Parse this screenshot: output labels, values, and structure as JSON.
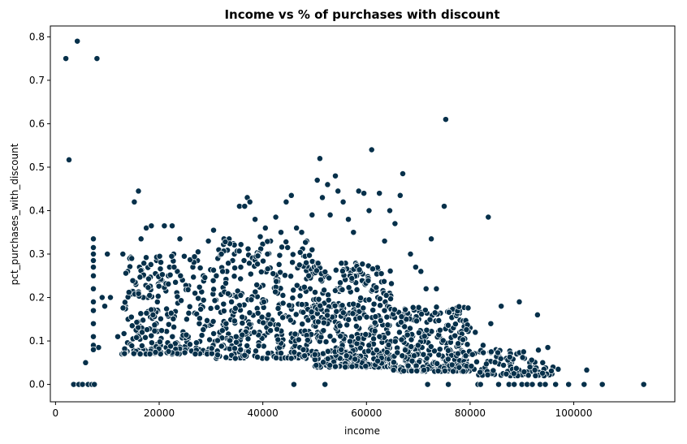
{
  "chart_data": {
    "type": "scatter",
    "title": "Income vs % of purchases with discount",
    "xlabel": "income",
    "ylabel": "pct_purchases_with_discount",
    "xlim": [
      -1000,
      119500
    ],
    "ylim": [
      -0.04,
      0.825
    ],
    "xticks": [
      0,
      20000,
      40000,
      60000,
      80000,
      100000
    ],
    "xtick_labels": [
      "0",
      "20000",
      "40000",
      "60000",
      "80000",
      "100000"
    ],
    "yticks": [
      0.0,
      0.1,
      0.2,
      0.3,
      0.4,
      0.5,
      0.6,
      0.7,
      0.8
    ],
    "ytick_labels": [
      "0.0",
      "0.1",
      "0.2",
      "0.3",
      "0.4",
      "0.5",
      "0.6",
      "0.7",
      "0.8"
    ],
    "grid": false,
    "legend": "none",
    "marker_color": "#06304a",
    "marker_edge_color": "#ffffff",
    "points": [
      [
        2000,
        0.75
      ],
      [
        4200,
        0.79
      ],
      [
        8000,
        0.75
      ],
      [
        2600,
        0.517
      ],
      [
        3500,
        0.0
      ],
      [
        4500,
        0.0
      ],
      [
        5200,
        0.0
      ],
      [
        6300,
        0.0
      ],
      [
        7000,
        0.0
      ],
      [
        7500,
        0.0
      ],
      [
        5800,
        0.05
      ],
      [
        8300,
        0.085
      ],
      [
        9000,
        0.2
      ],
      [
        10000,
        0.3
      ],
      [
        10600,
        0.2
      ],
      [
        9500,
        0.18
      ],
      [
        7300,
        0.335
      ],
      [
        7300,
        0.315
      ],
      [
        7300,
        0.3
      ],
      [
        7300,
        0.285
      ],
      [
        7300,
        0.27
      ],
      [
        7300,
        0.25
      ],
      [
        7300,
        0.22
      ],
      [
        7300,
        0.19
      ],
      [
        7300,
        0.17
      ],
      [
        7300,
        0.14
      ],
      [
        7300,
        0.11
      ],
      [
        7300,
        0.09
      ],
      [
        7300,
        0.08
      ],
      [
        13000,
        0.3
      ],
      [
        14500,
        0.29
      ],
      [
        15200,
        0.42
      ],
      [
        16000,
        0.445
      ],
      [
        16500,
        0.335
      ],
      [
        17500,
        0.36
      ],
      [
        18500,
        0.365
      ],
      [
        19500,
        0.285
      ],
      [
        21000,
        0.365
      ],
      [
        22500,
        0.365
      ],
      [
        24000,
        0.335
      ],
      [
        12000,
        0.11
      ],
      [
        12800,
        0.07
      ],
      [
        13500,
        0.18
      ],
      [
        14000,
        0.15
      ],
      [
        14800,
        0.215
      ],
      [
        15500,
        0.23
      ],
      [
        16200,
        0.27
      ],
      [
        17000,
        0.25
      ],
      [
        17800,
        0.2
      ],
      [
        18300,
        0.155
      ],
      [
        19000,
        0.13
      ],
      [
        19800,
        0.17
      ],
      [
        20500,
        0.24
      ],
      [
        21300,
        0.215
      ],
      [
        22000,
        0.27
      ],
      [
        22800,
        0.3
      ],
      [
        23500,
        0.26
      ],
      [
        24500,
        0.24
      ],
      [
        25500,
        0.22
      ],
      [
        26500,
        0.27
      ],
      [
        27500,
        0.305
      ],
      [
        28500,
        0.25
      ],
      [
        29500,
        0.33
      ],
      [
        30500,
        0.355
      ],
      [
        31500,
        0.31
      ],
      [
        32500,
        0.335
      ],
      [
        33500,
        0.335
      ],
      [
        34500,
        0.3
      ],
      [
        35500,
        0.41
      ],
      [
        36500,
        0.41
      ],
      [
        37000,
        0.43
      ],
      [
        37500,
        0.42
      ],
      [
        38500,
        0.38
      ],
      [
        39500,
        0.34
      ],
      [
        40500,
        0.36
      ],
      [
        41500,
        0.33
      ],
      [
        42500,
        0.385
      ],
      [
        43500,
        0.35
      ],
      [
        44500,
        0.42
      ],
      [
        45500,
        0.435
      ],
      [
        46500,
        0.36
      ],
      [
        47500,
        0.35
      ],
      [
        48500,
        0.33
      ],
      [
        49500,
        0.39
      ],
      [
        50500,
        0.47
      ],
      [
        51000,
        0.52
      ],
      [
        51500,
        0.43
      ],
      [
        52500,
        0.46
      ],
      [
        53000,
        0.39
      ],
      [
        54000,
        0.48
      ],
      [
        54500,
        0.445
      ],
      [
        55500,
        0.42
      ],
      [
        56500,
        0.38
      ],
      [
        57500,
        0.35
      ],
      [
        58500,
        0.445
      ],
      [
        59500,
        0.44
      ],
      [
        60500,
        0.4
      ],
      [
        61000,
        0.54
      ],
      [
        62500,
        0.44
      ],
      [
        63500,
        0.33
      ],
      [
        64500,
        0.4
      ],
      [
        65500,
        0.37
      ],
      [
        66500,
        0.435
      ],
      [
        67000,
        0.485
      ],
      [
        68500,
        0.3
      ],
      [
        69500,
        0.27
      ],
      [
        70500,
        0.26
      ],
      [
        71500,
        0.22
      ],
      [
        72500,
        0.335
      ],
      [
        73500,
        0.22
      ],
      [
        75000,
        0.41
      ],
      [
        75300,
        0.61
      ],
      [
        76000,
        0.17
      ],
      [
        77000,
        0.16
      ],
      [
        78000,
        0.12
      ],
      [
        79000,
        0.14
      ],
      [
        80000,
        0.13
      ],
      [
        81000,
        0.12
      ],
      [
        82500,
        0.09
      ],
      [
        83500,
        0.385
      ],
      [
        84000,
        0.14
      ],
      [
        85000,
        0.08
      ],
      [
        86000,
        0.18
      ],
      [
        87000,
        0.06
      ],
      [
        88000,
        0.05
      ],
      [
        89000,
        0.07
      ],
      [
        89500,
        0.19
      ],
      [
        90500,
        0.06
      ],
      [
        91500,
        0.05
      ],
      [
        92500,
        0.04
      ],
      [
        93000,
        0.16
      ],
      [
        94000,
        0.05
      ],
      [
        95000,
        0.085
      ],
      [
        96000,
        0.04
      ],
      [
        97000,
        0.035
      ],
      [
        71800,
        0.0
      ],
      [
        75800,
        0.0
      ],
      [
        81500,
        0.0
      ],
      [
        82000,
        0.0
      ],
      [
        85500,
        0.0
      ],
      [
        87500,
        0.0
      ],
      [
        88500,
        0.0
      ],
      [
        90000,
        0.0
      ],
      [
        91000,
        0.0
      ],
      [
        92000,
        0.0
      ],
      [
        93500,
        0.0
      ],
      [
        94500,
        0.0
      ],
      [
        96500,
        0.0
      ],
      [
        99000,
        0.0
      ],
      [
        102000,
        0.0
      ],
      [
        102500,
        0.033
      ],
      [
        105500,
        0.0
      ],
      [
        113500,
        0.0
      ],
      [
        46000,
        0.0
      ],
      [
        52000,
        0.0
      ]
    ],
    "dense_regions": [
      {
        "x_range": [
          13000,
          30000
        ],
        "y_range": [
          0.07,
          0.3
        ],
        "count": 240
      },
      {
        "x_range": [
          30000,
          50000
        ],
        "y_range": [
          0.06,
          0.33
        ],
        "count": 380
      },
      {
        "x_range": [
          50000,
          65000
        ],
        "y_range": [
          0.04,
          0.28
        ],
        "count": 420
      },
      {
        "x_range": [
          65000,
          80000
        ],
        "y_range": [
          0.03,
          0.18
        ],
        "count": 300
      },
      {
        "x_range": [
          80000,
          96000
        ],
        "y_range": [
          0.02,
          0.08
        ],
        "count": 90
      }
    ]
  }
}
